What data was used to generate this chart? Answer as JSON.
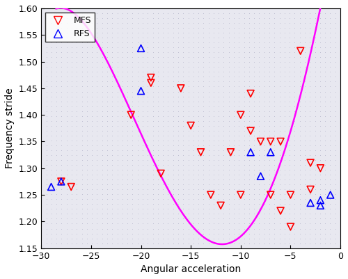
{
  "title": "",
  "xlabel": "Angular acceleration",
  "ylabel": "Frequency stride",
  "xlim": [
    -30,
    0
  ],
  "ylim": [
    1.15,
    1.6
  ],
  "xticks": [
    -30,
    -25,
    -20,
    -15,
    -10,
    -5,
    0
  ],
  "yticks": [
    1.15,
    1.2,
    1.25,
    1.3,
    1.35,
    1.4,
    1.45,
    1.5,
    1.55,
    1.6
  ],
  "mfs_x": [
    -28,
    -27,
    -21,
    -19,
    -19,
    -18,
    -16,
    -15,
    -14,
    -13,
    -12,
    -11,
    -10,
    -10,
    -9,
    -9,
    -8,
    -7,
    -7,
    -6,
    -6,
    -5,
    -5,
    -4,
    -3,
    -3,
    -2
  ],
  "mfs_y": [
    1.275,
    1.265,
    1.4,
    1.47,
    1.46,
    1.29,
    1.45,
    1.38,
    1.33,
    1.25,
    1.23,
    1.33,
    1.4,
    1.25,
    1.44,
    1.37,
    1.35,
    1.35,
    1.25,
    1.35,
    1.22,
    1.25,
    1.19,
    1.52,
    1.31,
    1.26,
    1.3
  ],
  "rfs_x": [
    -29,
    -28,
    -20,
    -20,
    -9,
    -8,
    -7,
    -3,
    -2,
    -2,
    -1
  ],
  "rfs_y": [
    1.265,
    1.275,
    1.525,
    1.445,
    1.33,
    1.285,
    1.33,
    1.235,
    1.24,
    1.23,
    1.25
  ],
  "curve_color": "#FF00FF",
  "mfs_color": "#FF0000",
  "rfs_color": "#0000FF",
  "bg_color": "#E8E8F0",
  "dot_color": "#8888AA",
  "grid_color": "#AAAACC"
}
